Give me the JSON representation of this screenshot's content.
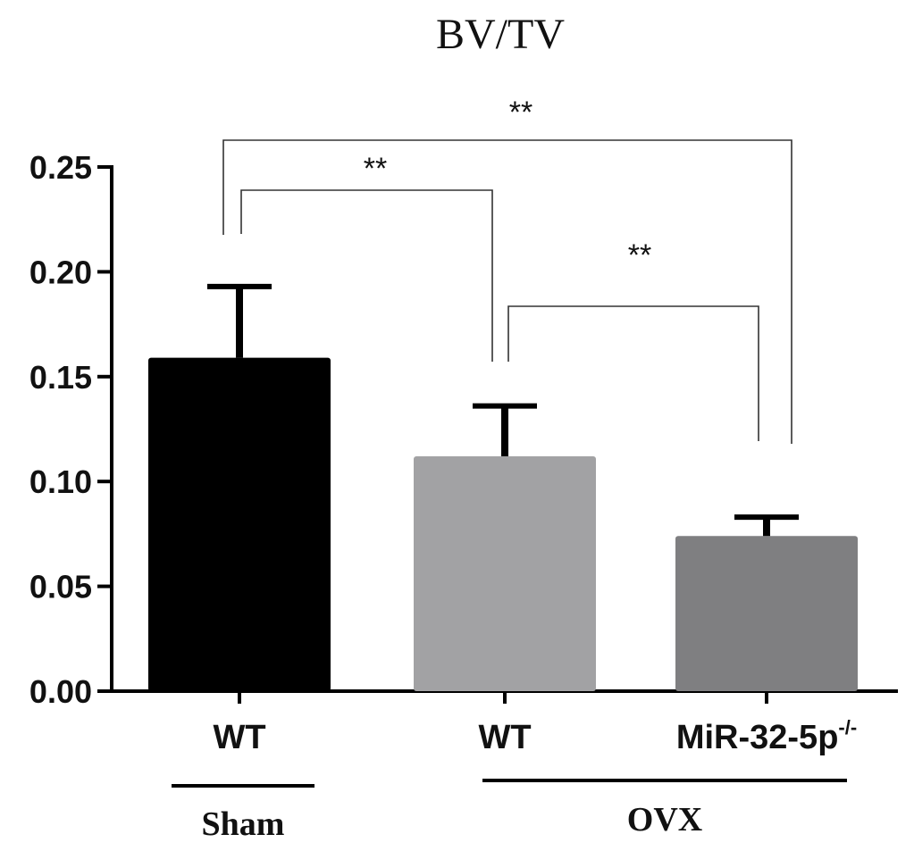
{
  "chart_data": {
    "type": "bar",
    "title": "BV/TV",
    "xlabel": "",
    "ylabel": "",
    "ylim": [
      0,
      0.25
    ],
    "yticks": [
      "0.00",
      "0.05",
      "0.10",
      "0.15",
      "0.20",
      "0.25"
    ],
    "categories": [
      {
        "label": "WT",
        "sup": ""
      },
      {
        "label": "WT",
        "sup": ""
      },
      {
        "label": "MiR-32-5p",
        "sup": "-/-"
      }
    ],
    "values": [
      0.159,
      0.112,
      0.074
    ],
    "errors": [
      0.034,
      0.024,
      0.009
    ],
    "colors": [
      "#000000",
      "#a2a2a4",
      "#7f7f81"
    ],
    "groups": [
      {
        "label": "Sham",
        "from": 0,
        "to": 0
      },
      {
        "label": "OVX",
        "from": 1,
        "to": 2
      }
    ],
    "significance": [
      {
        "from": 0,
        "to": 2,
        "label": "**"
      },
      {
        "from": 0,
        "to": 1,
        "label": "**"
      },
      {
        "from": 1,
        "to": 2,
        "label": "**"
      }
    ]
  }
}
